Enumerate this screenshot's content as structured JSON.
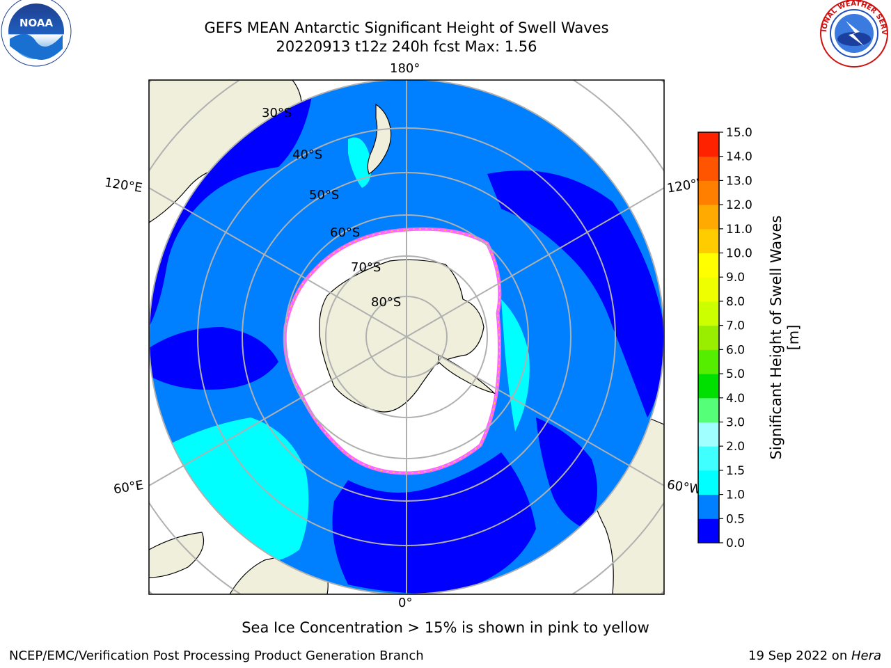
{
  "header": {
    "title_line1": "GEFS MEAN Antarctic Significant Height of Swell Waves",
    "title_line2": "20220913 t12z 240h fcst   Max: 1.56"
  },
  "logos": {
    "noaa": {
      "text": "NOAA",
      "icon": "noaa-logo-icon"
    },
    "nws": {
      "text": "NATIONAL WEATHER SERVICE",
      "icon": "nws-logo-icon"
    }
  },
  "map": {
    "projection": "south-polar-stereographic",
    "longitude_labels": {
      "top": "180°",
      "bottom": "0°",
      "upper_left": "120°E",
      "upper_right": "120°W",
      "lower_left": "60°E",
      "lower_right": "60°W"
    },
    "latitude_labels": [
      "30°S",
      "40°S",
      "50°S",
      "60°S",
      "70°S",
      "80°S"
    ],
    "colors": {
      "land": "#efefdc",
      "ice_edge_pink": "#ff66ff",
      "ice_edge_yellow": "#ffcc33",
      "grid": "#b0b0b0"
    }
  },
  "colorbar": {
    "label": "Significant Height of Swell Waves [m]",
    "ticks": [
      "0.0",
      "0.5",
      "1.0",
      "1.5",
      "2.0",
      "3.0",
      "4.0",
      "5.0",
      "6.0",
      "7.0",
      "8.0",
      "9.0",
      "10.0",
      "11.0",
      "12.0",
      "13.0",
      "14.0",
      "15.0"
    ],
    "colors": [
      "#0000ff",
      "#0080ff",
      "#00ffff",
      "#40ffff",
      "#a0ffff",
      "#55ff77",
      "#00e000",
      "#55ee00",
      "#99ee00",
      "#ccff00",
      "#eeff00",
      "#ffff00",
      "#ffcc00",
      "#ffaa00",
      "#ff8000",
      "#ff5500",
      "#ff2200"
    ]
  },
  "note": "Sea Ice Concentration > 15% is shown in pink to yellow",
  "footer": {
    "left": "NCEP/EMC/Verification Post Processing Product Generation Branch",
    "right_date": "19 Sep 2022 on ",
    "right_machine": "Hera"
  }
}
